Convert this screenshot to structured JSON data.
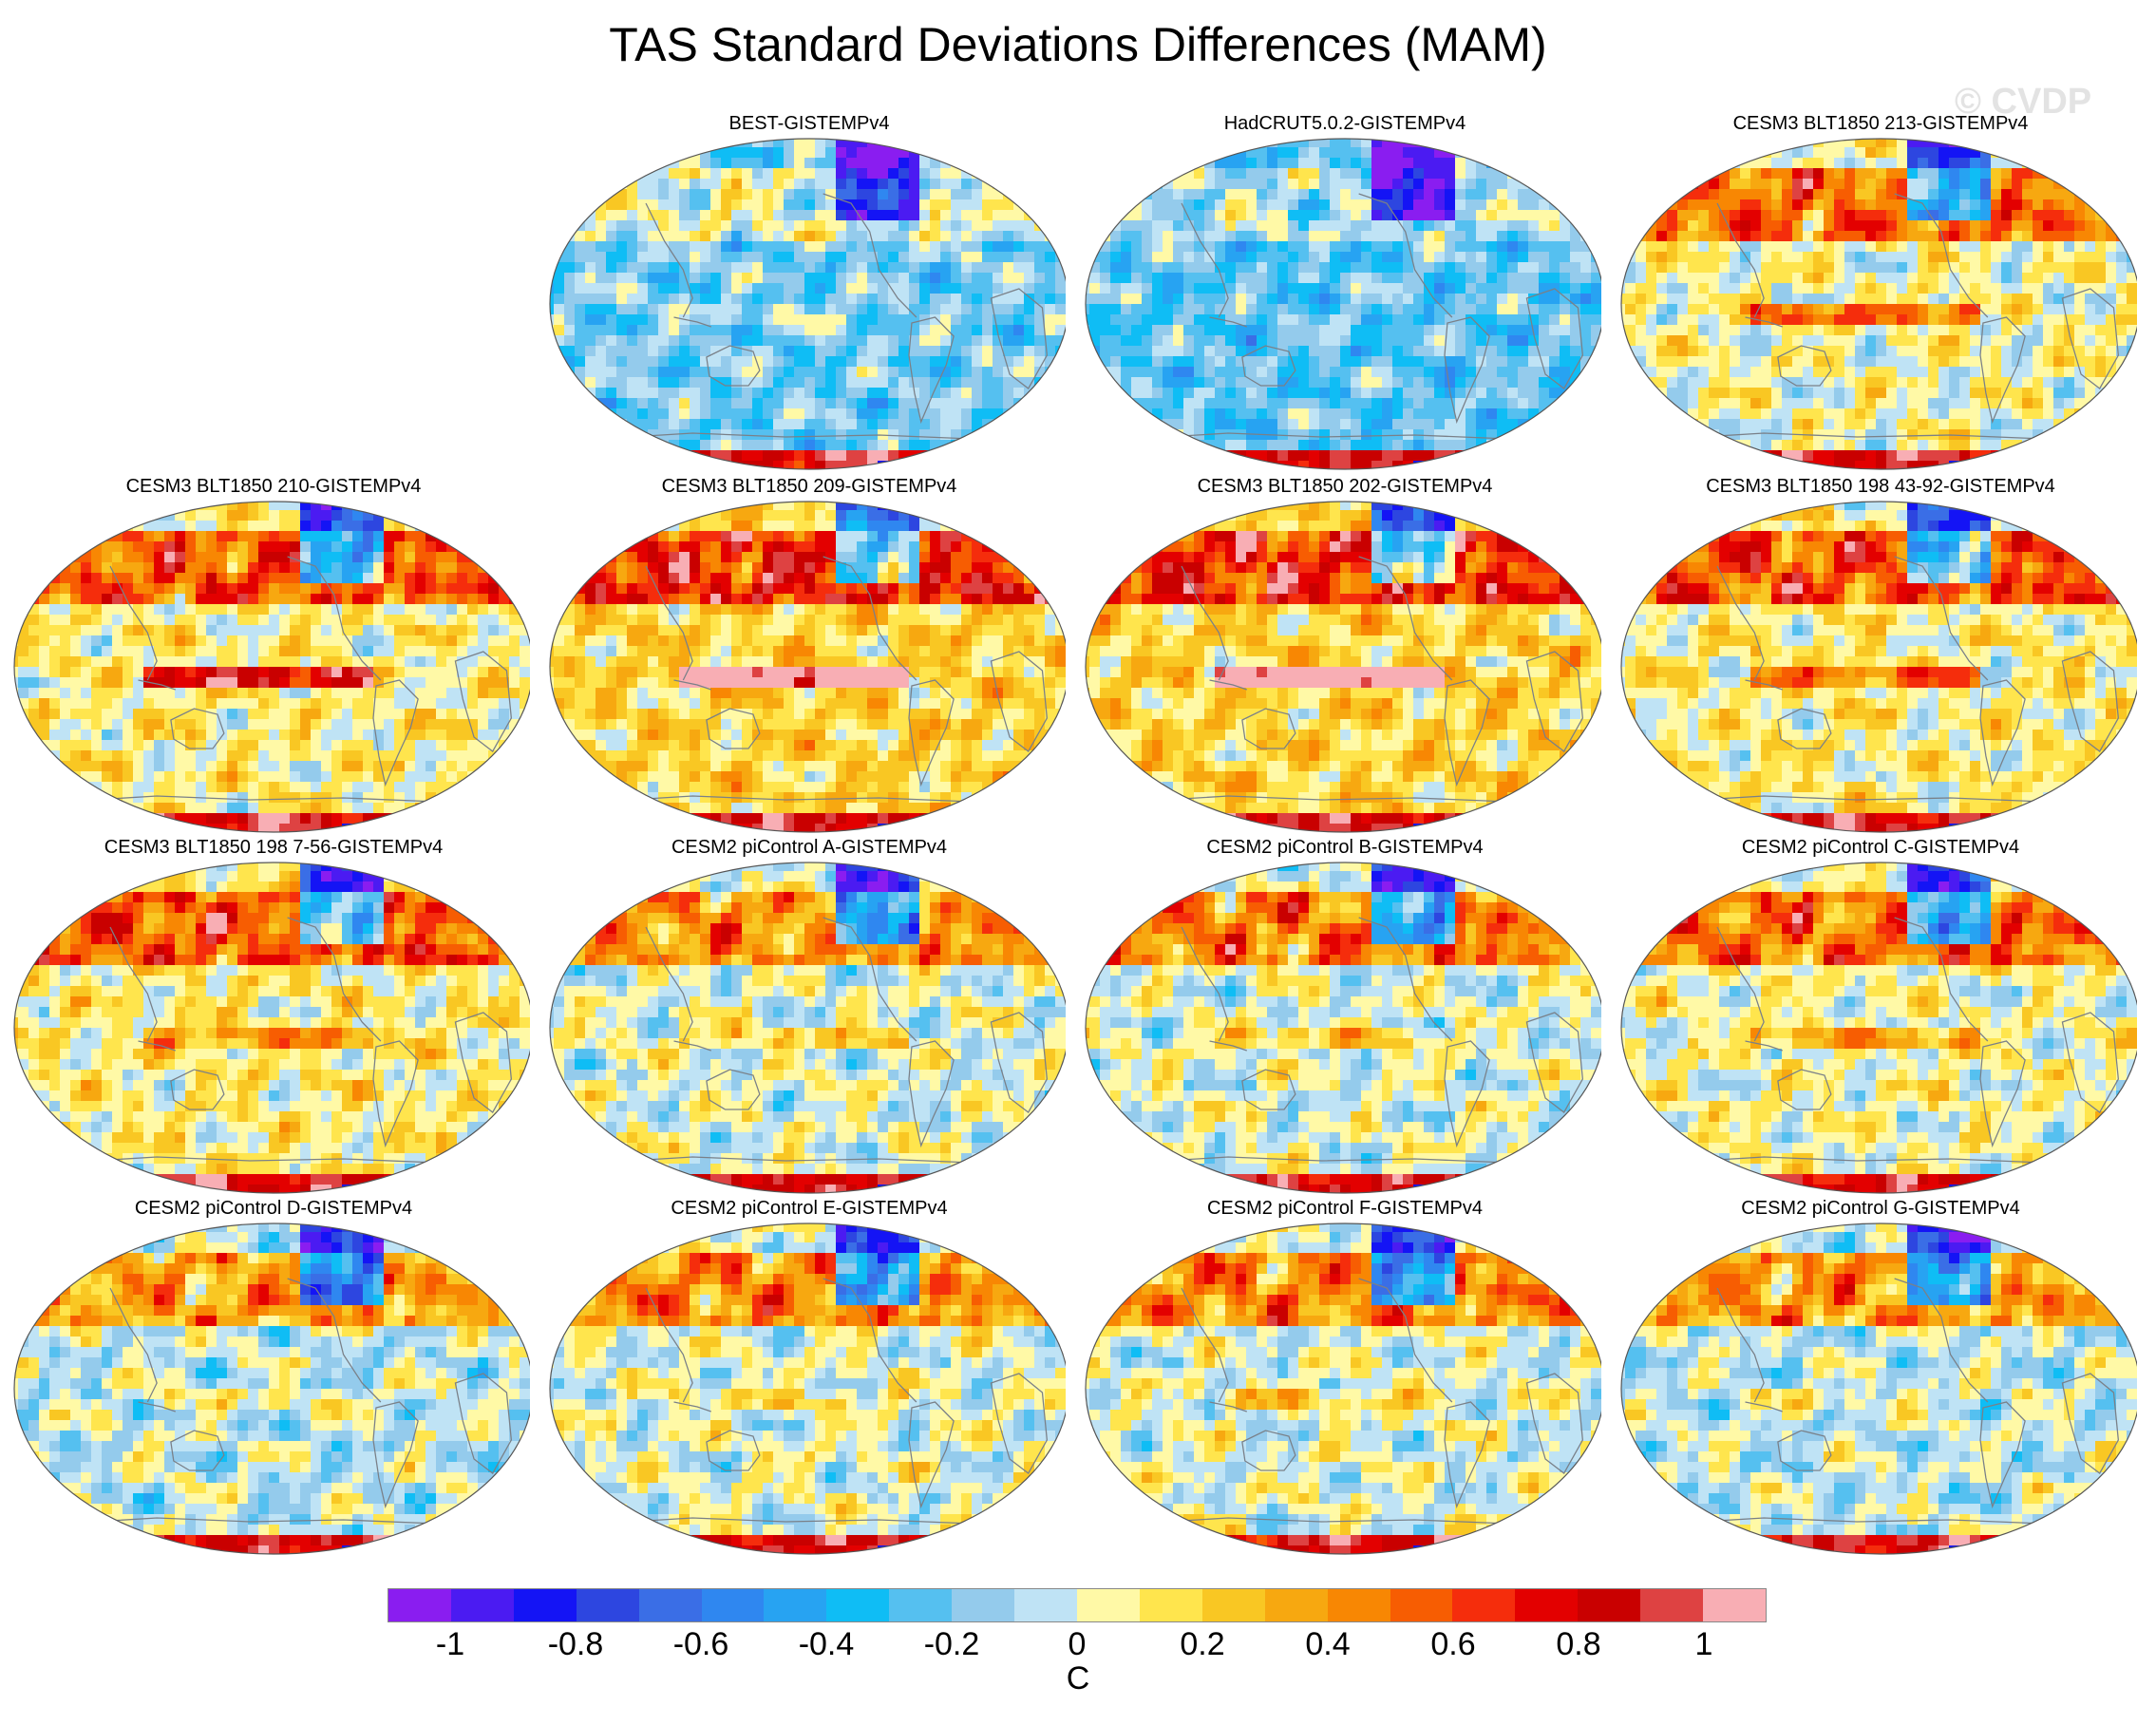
{
  "title": "TAS Standard Deviations Differences (MAM)",
  "watermark": "© CVDP",
  "panels": [
    {
      "title": "BEST-GISTEMPv4",
      "tropic_warm": 0.1,
      "arctic_warm": 0.35,
      "ocean_base": -0.2
    },
    {
      "title": "HadCRUT5.0.2-GISTEMPv4",
      "tropic_warm": 0.0,
      "arctic_warm": 0.25,
      "ocean_base": -0.25
    },
    {
      "title": "CESM3 BLT1850 213-GISTEMPv4",
      "tropic_warm": 0.5,
      "arctic_warm": 0.8,
      "ocean_base": 0.05
    },
    {
      "title": "CESM3 BLT1850 210-GISTEMPv4",
      "tropic_warm": 0.8,
      "arctic_warm": 0.8,
      "ocean_base": 0.1
    },
    {
      "title": "CESM3 BLT1850 209-GISTEMPv4",
      "tropic_warm": 1.0,
      "arctic_warm": 0.9,
      "ocean_base": 0.2
    },
    {
      "title": "CESM3 BLT1850 202-GISTEMPv4",
      "tropic_warm": 1.0,
      "arctic_warm": 0.9,
      "ocean_base": 0.2
    },
    {
      "title": "CESM3 BLT1850 198 43-92-GISTEMPv4",
      "tropic_warm": 0.4,
      "arctic_warm": 0.85,
      "ocean_base": 0.1
    },
    {
      "title": "CESM3 BLT1850 198 7-56-GISTEMPv4",
      "tropic_warm": 0.3,
      "arctic_warm": 0.85,
      "ocean_base": 0.1
    },
    {
      "title": "CESM2 piControl A-GISTEMPv4",
      "tropic_warm": 0.2,
      "arctic_warm": 0.7,
      "ocean_base": 0.0
    },
    {
      "title": "CESM2 piControl B-GISTEMPv4",
      "tropic_warm": 0.2,
      "arctic_warm": 0.8,
      "ocean_base": 0.0
    },
    {
      "title": "CESM2 piControl C-GISTEMPv4",
      "tropic_warm": 0.3,
      "arctic_warm": 0.8,
      "ocean_base": 0.05
    },
    {
      "title": "CESM2 piControl D-GISTEMPv4",
      "tropic_warm": 0.1,
      "arctic_warm": 0.7,
      "ocean_base": -0.05
    },
    {
      "title": "CESM2 piControl E-GISTEMPv4",
      "tropic_warm": 0.1,
      "arctic_warm": 0.75,
      "ocean_base": 0.0
    },
    {
      "title": "CESM2 piControl F-GISTEMPv4",
      "tropic_warm": 0.2,
      "arctic_warm": 0.75,
      "ocean_base": 0.0
    },
    {
      "title": "CESM2 piControl G-GISTEMPv4",
      "tropic_warm": 0.1,
      "arctic_warm": 0.75,
      "ocean_base": -0.05
    }
  ],
  "colorbar": {
    "colors": [
      "#8a1df0",
      "#4b1bf2",
      "#1414f5",
      "#2d46e0",
      "#3a6ee6",
      "#2f87f0",
      "#27a3f2",
      "#0fbdf5",
      "#55c0f0",
      "#94cbec",
      "#bfe3f5",
      "#fff9a6",
      "#ffe54d",
      "#f9c723",
      "#f7a810",
      "#f88703",
      "#f75d02",
      "#f52d0c",
      "#e30000",
      "#c90000",
      "#de4242",
      "#f8aeb4"
    ],
    "labels": [
      "-1",
      "-0.8",
      "-0.6",
      "-0.4",
      "-0.2",
      "0",
      "0.2",
      "0.4",
      "0.6",
      "0.8",
      "1"
    ],
    "unit": "C"
  }
}
